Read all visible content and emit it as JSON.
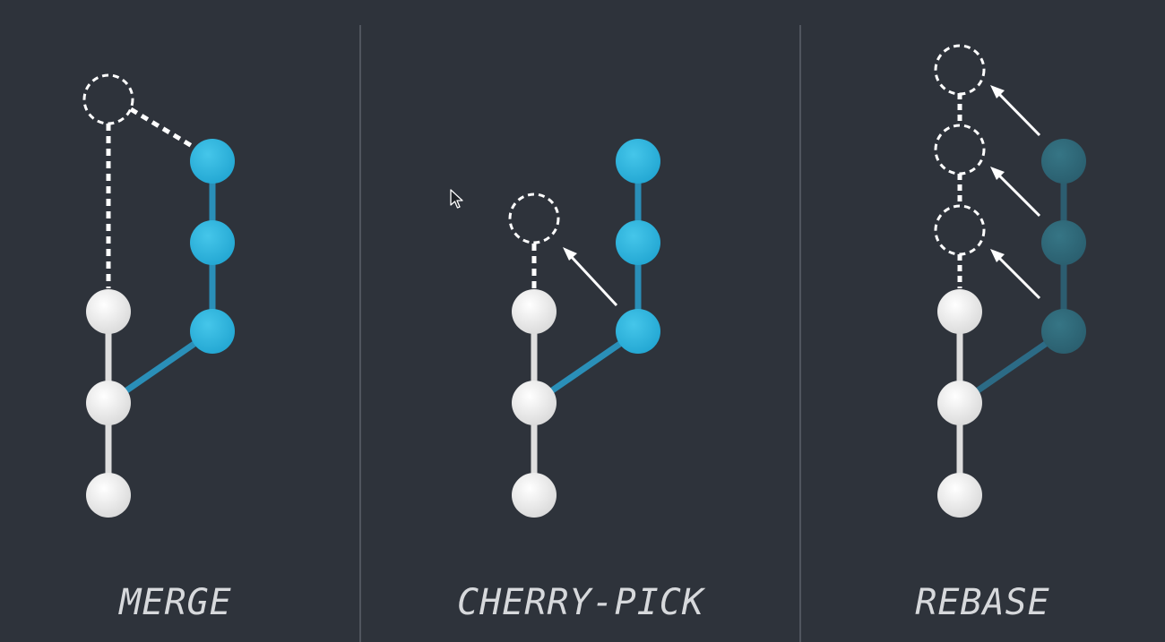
{
  "panels": [
    {
      "id": "merge",
      "label": "MERGE"
    },
    {
      "id": "cherry_pick",
      "label": "CHERRY-PICK"
    },
    {
      "id": "rebase",
      "label": "REBASE"
    }
  ],
  "colors": {
    "background": "#2e333b",
    "divider": "#5b616a",
    "main_commit": "#f2f2f2",
    "main_branch_line": "#dedede",
    "feature_commit": "#33b6dd",
    "feature_branch_line": "#2a8fb8",
    "faded_feature_commit": "#2f6777",
    "faded_feature_line": "#2c5d70",
    "new_commit_outline": "#ffffff",
    "arrow": "#ffffff",
    "label_text": "#d7d9dc"
  },
  "icons": [
    "mouse-pointer-icon"
  ]
}
